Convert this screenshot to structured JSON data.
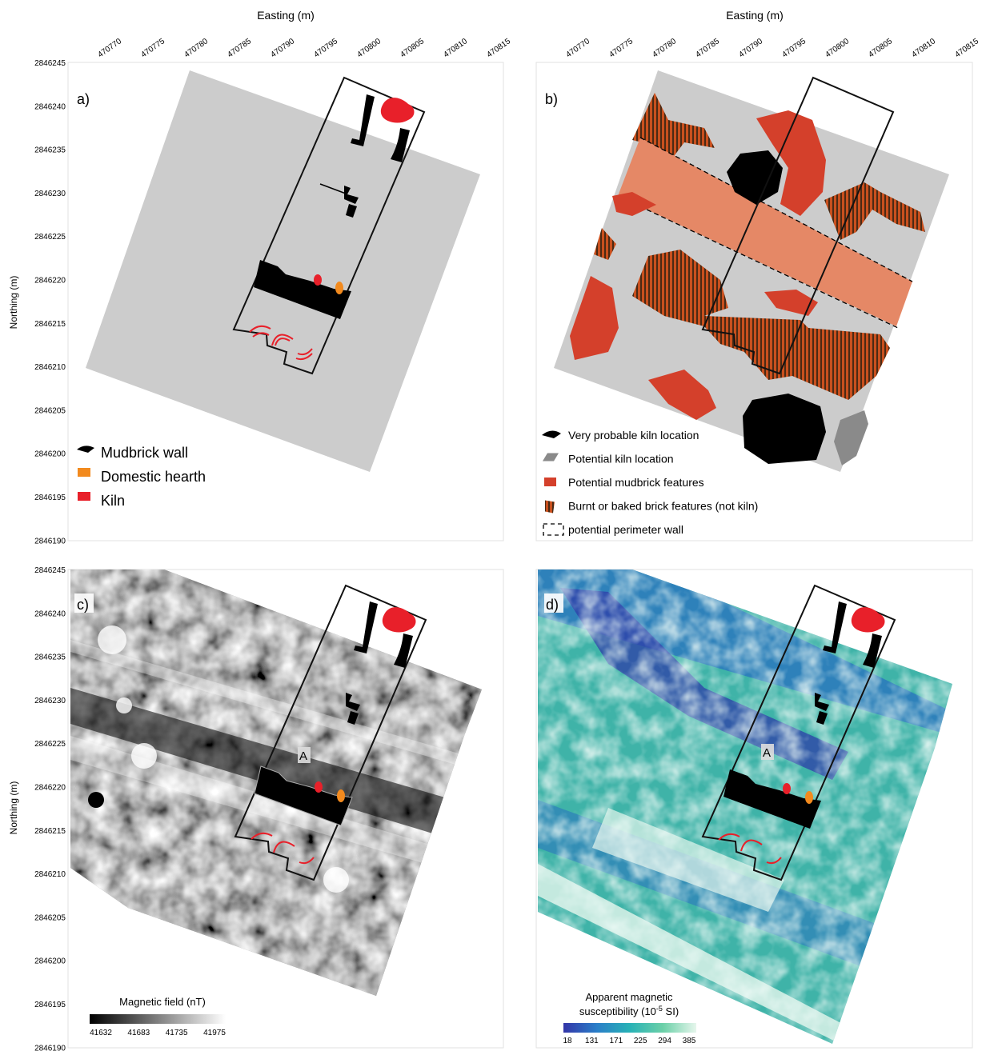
{
  "axes": {
    "easting_title": "Easting (m)",
    "northing_title": "Northing (m)",
    "easting_ticks": [
      "470770",
      "470775",
      "470780",
      "470785",
      "470790",
      "470795",
      "470800",
      "470805",
      "470810",
      "470815"
    ],
    "northing_ticks": [
      "2846245",
      "2846240",
      "2846235",
      "2846230",
      "2846225",
      "2846220",
      "2846215",
      "2846210",
      "2846205",
      "2846200",
      "2846195",
      "2846190"
    ]
  },
  "panels": {
    "a": {
      "label": "a)"
    },
    "b": {
      "label": "b)"
    },
    "c": {
      "label": "c)"
    },
    "d": {
      "label": "d)"
    }
  },
  "legend_a": [
    {
      "label": "Mudbrick wall",
      "color": "#000000",
      "icon": "mudbrick-wall-icon"
    },
    {
      "label": "Domestic hearth",
      "color": "#f28a1e",
      "icon": "hearth-icon"
    },
    {
      "label": "Kiln",
      "color": "#e8202a",
      "icon": "kiln-icon"
    }
  ],
  "legend_b": [
    {
      "label": "Very probable kiln location",
      "color": "#000000",
      "icon": "probable-kiln-icon"
    },
    {
      "label": "Potential kiln location",
      "color": "#8a8a8a",
      "icon": "potential-kiln-icon"
    },
    {
      "label": "Potential mudbrick features",
      "color": "#d4402b",
      "icon": "mudbrick-feature-icon"
    },
    {
      "label": "Burnt or baked brick features (not kiln)",
      "color": "#a84a1e",
      "icon": "burnt-brick-icon"
    },
    {
      "label": "potential perimeter wall",
      "color": "#000000",
      "icon": "perimeter-wall-icon"
    }
  ],
  "annotations": {
    "point_a_label": "A"
  },
  "colorbar_c": {
    "title": "Magnetic field (nT)",
    "ticks": [
      "41632",
      "41683",
      "41735",
      "41975"
    ],
    "colors": [
      "#000000",
      "#ffffff"
    ]
  },
  "colorbar_d": {
    "title_line1": "Apparent magnetic",
    "title_line2": "susceptibility (10",
    "title_sup": "-5",
    "title_end": " SI)",
    "ticks": [
      "18",
      "131",
      "171",
      "225",
      "294",
      "385"
    ],
    "colors": [
      "#3335a8",
      "#2a7ec8",
      "#28b2b6",
      "#6cd0a8",
      "#e6f6ec"
    ]
  },
  "colors": {
    "grey_area": "#cccccc",
    "mudbrick": "#d4402b",
    "corridor": "#e58866",
    "burnt": "#a84a1e",
    "kiln_red": "#e8202a",
    "hearth": "#f28a1e"
  }
}
